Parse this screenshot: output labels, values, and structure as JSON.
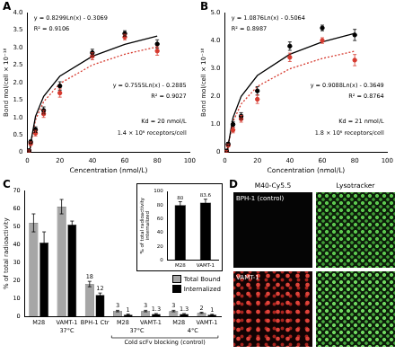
{
  "chart_data": [
    {
      "type": "scatter",
      "title": "A",
      "x_label": "Cencentration (nmol/L)",
      "y_label": "Bond mol/cell × 10⁻¹⁸",
      "xlim": [
        0,
        100
      ],
      "xticks": [
        0,
        20,
        40,
        60,
        80,
        100
      ],
      "ylim": [
        0,
        4
      ],
      "yticks": [
        0,
        0.5,
        {
          "value": 1,
          "label": "1.0"
        },
        1.5,
        {
          "value": 2,
          "label": "2.0"
        },
        2.5,
        {
          "value": 3,
          "label": "3.0"
        },
        3.5,
        {
          "value": 4,
          "label": "4.0"
        }
      ],
      "grid": false,
      "series": [
        {
          "color": "#000000",
          "marker": "circle",
          "x": [
            1,
            2,
            5,
            10,
            20,
            40,
            60,
            80
          ],
          "values": [
            0.05,
            0.3,
            0.65,
            1.2,
            1.9,
            2.85,
            3.4,
            3.1
          ],
          "error": [
            0.03,
            0.05,
            0.08,
            0.1,
            0.12,
            0.1,
            0.08,
            0.12
          ]
        },
        {
          "color": "#d63a2f",
          "marker": "circle",
          "x": [
            1,
            2,
            5,
            10,
            20,
            40,
            60,
            80
          ],
          "values": [
            0.04,
            0.25,
            0.55,
            1.1,
            1.7,
            2.75,
            3.3,
            2.9
          ],
          "error": [
            0.03,
            0.05,
            0.08,
            0.1,
            0.12,
            0.1,
            0.08,
            0.12
          ]
        },
        {
          "type": "line",
          "color": "#000000",
          "line_style": "solid",
          "x": [
            1.5,
            2,
            5,
            10,
            20,
            40,
            60,
            80
          ],
          "values": [
            0.03,
            0.27,
            1.03,
            1.6,
            2.18,
            2.75,
            3.09,
            3.33
          ]
        },
        {
          "type": "line",
          "color": "#d63a2f",
          "line_style": "dotted",
          "x": [
            1.5,
            2,
            5,
            10,
            20,
            40,
            60,
            80
          ],
          "values": [
            0.02,
            0.23,
            0.93,
            1.45,
            1.97,
            2.5,
            2.81,
            3.02
          ]
        }
      ],
      "annotations": [
        {
          "text": "y = 0.8299Ln(x) - 0.3069"
        },
        {
          "text": "R² = 0.9106"
        },
        {
          "text": "y = 0.7555Ln(x) - 0.2885"
        },
        {
          "text": "R² = 0.9027"
        },
        {
          "text": "Kd = 20 nmol/L"
        },
        {
          "text": "1.4 × 10⁶ receptors/cell"
        }
      ]
    },
    {
      "type": "scatter",
      "title": "B",
      "x_label": "Concentration (nmol/L)",
      "y_label": "Bond mol/cell × 10⁻¹⁸",
      "xlim": [
        0,
        100
      ],
      "xticks": [
        0,
        20,
        40,
        60,
        80,
        100
      ],
      "ylim": [
        0,
        5
      ],
      "yticks": [
        0,
        {
          "value": 1,
          "label": "1.0"
        },
        {
          "value": 2,
          "label": "2.0"
        },
        {
          "value": 3,
          "label": "3.0"
        },
        {
          "value": 4,
          "label": "4.0"
        },
        {
          "value": 5,
          "label": "5.0"
        }
      ],
      "grid": false,
      "series": [
        {
          "color": "#000000",
          "marker": "circle",
          "x": [
            1,
            2,
            5,
            10,
            20,
            40,
            60,
            80
          ],
          "values": [
            0.05,
            0.3,
            1.0,
            1.3,
            2.2,
            3.8,
            4.45,
            4.2
          ],
          "error": [
            0.03,
            0.05,
            0.1,
            0.12,
            0.15,
            0.15,
            0.1,
            0.2
          ]
        },
        {
          "color": "#d63a2f",
          "marker": "circle",
          "x": [
            1,
            2,
            5,
            10,
            20,
            40,
            60,
            80
          ],
          "values": [
            0.04,
            0.25,
            0.8,
            1.2,
            1.9,
            3.4,
            4.0,
            3.3
          ],
          "error": [
            0.03,
            0.05,
            0.1,
            0.12,
            0.15,
            0.15,
            0.1,
            0.2
          ]
        },
        {
          "type": "line",
          "color": "#000000",
          "line_style": "solid",
          "x": [
            1.6,
            2,
            5,
            10,
            20,
            40,
            60,
            80
          ],
          "values": [
            0.01,
            0.25,
            1.24,
            2.0,
            2.75,
            3.51,
            3.95,
            4.26
          ]
        },
        {
          "type": "line",
          "color": "#d63a2f",
          "line_style": "dotted",
          "x": [
            1.5,
            2,
            5,
            10,
            20,
            40,
            60,
            80
          ],
          "values": [
            0.01,
            0.27,
            1.1,
            1.73,
            2.36,
            2.99,
            3.36,
            3.62
          ]
        }
      ],
      "annotations": [
        {
          "text": "y = 1.0876Ln(x) - 0.5064"
        },
        {
          "text": "R² = 0.8987"
        },
        {
          "text": "y = 0.9088Ln(x) - 0.3649"
        },
        {
          "text": "R² = 0.8764"
        },
        {
          "text": "Kd = 21 nmol/L"
        },
        {
          "text": "1.8 × 10⁶ receptors/cell"
        }
      ]
    },
    {
      "type": "bar",
      "title": "C",
      "y_label": "% of total radioactivity",
      "ylim": [
        0,
        70
      ],
      "yticks": [
        0,
        10,
        20,
        30,
        40,
        50,
        60,
        70
      ],
      "grid": false,
      "legend": "right",
      "data_labels": true,
      "categories": [
        "M28",
        "VAMT-1",
        "BPH-1 Ctr",
        "M28",
        "VAMT-1",
        "M28",
        "VAMT-1"
      ],
      "series": [
        {
          "name": "Total Bound",
          "color": "#a6a6a6",
          "values": [
            52,
            61,
            18,
            3,
            3,
            3,
            2
          ],
          "error": [
            5,
            4,
            1.5,
            0.4,
            0.4,
            0.4,
            0.3
          ],
          "value_labels": [
            null,
            null,
            "18",
            "3",
            "3",
            "3",
            "2"
          ]
        },
        {
          "name": "Internalized",
          "color": "#000000",
          "values": [
            41,
            51,
            12,
            1,
            1.3,
            1.3,
            1
          ],
          "error": [
            6,
            2,
            1,
            0.3,
            0.3,
            0.3,
            0.2
          ],
          "value_labels": [
            null,
            null,
            "12",
            "1",
            "1.3",
            "1.3",
            "1"
          ]
        }
      ],
      "annotations": [
        {
          "text": "37°C",
          "categories": [
            0,
            2
          ]
        },
        {
          "text": "37°C",
          "categories": [
            3,
            4
          ]
        },
        {
          "text": "4°C",
          "categories": [
            5,
            6
          ]
        },
        {
          "text": "Cold scFv blocking (control)",
          "categories": [
            3,
            6
          ]
        }
      ]
    },
    {
      "type": "bar",
      "y_label": [
        "% of total radioactivity",
        "internalized"
      ],
      "ylim": [
        0,
        100
      ],
      "yticks": [
        0,
        20,
        40,
        60,
        80,
        100
      ],
      "grid": false,
      "data_labels": true,
      "categories": [
        "M28",
        "VAMT-1"
      ],
      "values": [
        80,
        83.6
      ],
      "error": [
        5,
        5
      ],
      "color": "#000000"
    }
  ],
  "images": {
    "title": "D",
    "columns": [
      "M40-Cy5.5",
      "Lysotracker"
    ],
    "rows": [
      "BPH-1 (control)",
      "VAMT-1"
    ]
  }
}
